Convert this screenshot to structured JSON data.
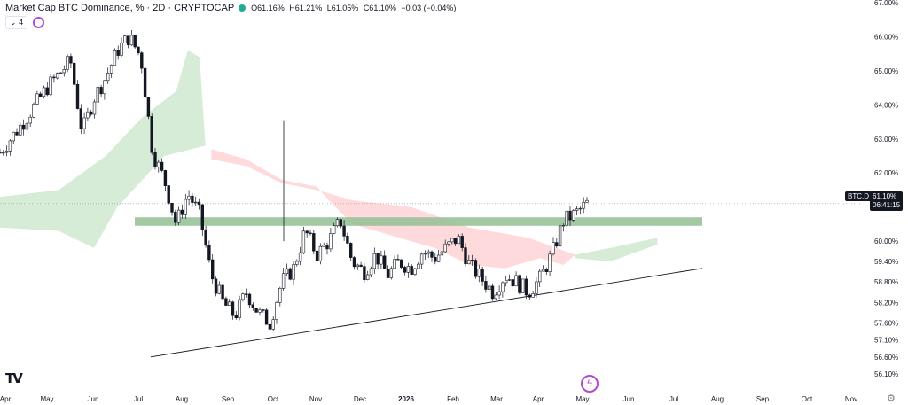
{
  "header": {
    "title": "Market Cap BTC Dominance, % · 2D · CRYPTOCAP",
    "open": "O61.16%",
    "high": "H61.21%",
    "low": "L61.05%",
    "close": "C61.10%",
    "change": "−0.03 (−0.04%)",
    "indicator_count": "4"
  },
  "price_badge": {
    "symbol": "BTC.D",
    "price": "61.10%",
    "countdown": "06:41:15"
  },
  "colors": {
    "up": "#ffffff",
    "down": "#131722",
    "cloud_bull": "#c8e6c9",
    "cloud_bear": "#ffcdd2",
    "zone": "#93bf94"
  },
  "chart_data": {
    "type": "candlestick",
    "title": "Market Cap BTC Dominance, % · 2D · CRYPTOCAP",
    "ylabel": "",
    "ylim": [
      56.1,
      67.0
    ],
    "y_ticks": [
      "67.00%",
      "66.00%",
      "65.00%",
      "64.00%",
      "63.00%",
      "62.00%",
      "61.10%",
      "60.00%",
      "59.40%",
      "58.80%",
      "58.20%",
      "57.60%",
      "57.10%",
      "56.60%",
      "56.10%"
    ],
    "x_ticks": [
      "Apr",
      "May",
      "Jun",
      "Jul",
      "Aug",
      "Sep",
      "Oct",
      "Nov",
      "Dec",
      "2026",
      "Feb",
      "Mar",
      "Apr",
      "May",
      "Jun",
      "Jul",
      "Aug",
      "Sep",
      "Oct",
      "Nov"
    ],
    "close_path": [
      [
        0,
        62.6
      ],
      [
        2,
        63.5
      ],
      [
        4,
        64.5
      ],
      [
        6,
        65.3
      ],
      [
        7,
        63.2
      ],
      [
        8,
        64.2
      ],
      [
        9,
        64.8
      ],
      [
        10,
        65.6
      ],
      [
        11,
        66.0
      ],
      [
        12,
        65.4
      ],
      [
        13,
        62.6
      ],
      [
        14,
        61.8
      ],
      [
        15,
        60.5
      ],
      [
        16,
        61.4
      ],
      [
        17,
        60.8
      ],
      [
        18,
        59.0
      ],
      [
        19,
        58.2
      ],
      [
        20,
        57.8
      ],
      [
        21,
        58.5
      ],
      [
        22,
        57.9
      ],
      [
        23,
        57.6
      ],
      [
        24,
        58.8
      ],
      [
        25,
        59.2
      ],
      [
        26,
        60.3
      ],
      [
        27,
        59.6
      ],
      [
        28,
        60.0
      ],
      [
        29,
        60.6
      ],
      [
        30,
        59.4
      ],
      [
        31,
        59.1
      ],
      [
        32,
        59.6
      ],
      [
        33,
        59.0
      ],
      [
        34,
        59.4
      ],
      [
        35,
        59.2
      ],
      [
        36,
        59.7
      ],
      [
        37,
        59.5
      ],
      [
        38,
        59.8
      ],
      [
        39,
        60.1
      ],
      [
        40,
        59.3
      ],
      [
        41,
        58.9
      ],
      [
        42,
        58.5
      ],
      [
        43,
        59.0
      ],
      [
        44,
        58.8
      ],
      [
        45,
        58.5
      ],
      [
        46,
        58.9
      ],
      [
        47,
        59.6
      ],
      [
        48,
        60.6
      ],
      [
        49,
        60.8
      ],
      [
        50,
        61.1
      ]
    ],
    "zone": {
      "from": 60.45,
      "to": 60.7
    },
    "support_line": {
      "from": 56.6,
      "to": 59.2
    },
    "last_price": 61.1
  }
}
